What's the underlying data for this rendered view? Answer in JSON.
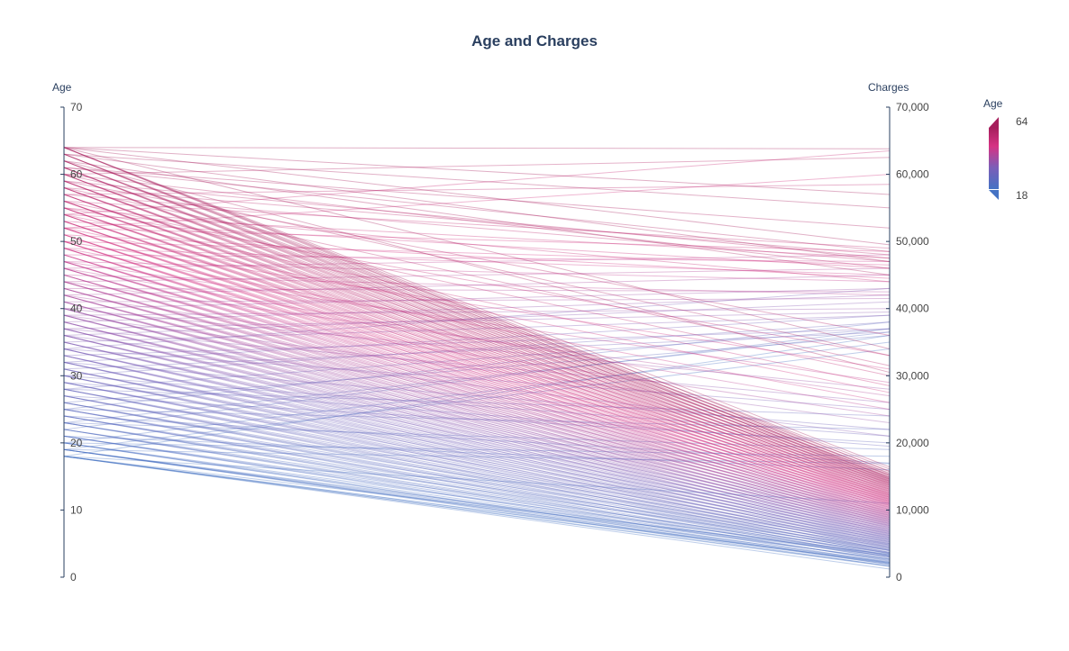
{
  "chart_data": {
    "type": "parallel_coordinates",
    "title": "Age and Charges",
    "dimensions": [
      {
        "label": "Age",
        "range": [
          0,
          70
        ],
        "ticks": [
          0,
          10,
          20,
          30,
          40,
          50,
          60,
          70
        ],
        "tick_labels": [
          "0",
          "10",
          "20",
          "30",
          "40",
          "50",
          "60",
          "70"
        ]
      },
      {
        "label": "Charges",
        "range": [
          0,
          70000
        ],
        "ticks": [
          0,
          10000,
          20000,
          30000,
          40000,
          50000,
          60000,
          70000
        ],
        "tick_labels": [
          "0",
          "10,000",
          "20,000",
          "30,000",
          "40,000",
          "50,000",
          "60,000",
          "70,000"
        ]
      }
    ],
    "colorbar": {
      "title": "Age",
      "min": 18,
      "max": 64,
      "min_label": "18",
      "max_label": "64",
      "colors": [
        "#4472c4",
        "#7b5fb8",
        "#d63384",
        "#a61e5c"
      ]
    },
    "line_opacity": 0.35,
    "records": [
      [
        18,
        1200
      ],
      [
        18,
        1700
      ],
      [
        18,
        2200
      ],
      [
        18,
        1600
      ],
      [
        18,
        11000
      ],
      [
        18,
        3400
      ],
      [
        18,
        36000
      ],
      [
        18,
        2100
      ],
      [
        19,
        1650
      ],
      [
        19,
        2300
      ],
      [
        19,
        1900
      ],
      [
        19,
        2700
      ],
      [
        19,
        16900
      ],
      [
        19,
        34000
      ],
      [
        19,
        3100
      ],
      [
        19,
        2000
      ],
      [
        20,
        2100
      ],
      [
        20,
        2600
      ],
      [
        20,
        1900
      ],
      [
        20,
        3300
      ],
      [
        20,
        35000
      ],
      [
        20,
        18000
      ],
      [
        21,
        2200
      ],
      [
        21,
        3000
      ],
      [
        21,
        2500
      ],
      [
        21,
        3600
      ],
      [
        21,
        16000
      ],
      [
        22,
        2400
      ],
      [
        22,
        3200
      ],
      [
        22,
        2800
      ],
      [
        22,
        37000
      ],
      [
        22,
        4000
      ],
      [
        23,
        2700
      ],
      [
        23,
        3500
      ],
      [
        23,
        3000
      ],
      [
        23,
        19000
      ],
      [
        23,
        4200
      ],
      [
        23,
        36500
      ],
      [
        24,
        3000
      ],
      [
        24,
        3700
      ],
      [
        24,
        3300
      ],
      [
        24,
        4500
      ],
      [
        24,
        17000
      ],
      [
        25,
        3200
      ],
      [
        25,
        4000
      ],
      [
        25,
        3600
      ],
      [
        25,
        22000
      ],
      [
        25,
        4800
      ],
      [
        25,
        38000
      ],
      [
        26,
        3500
      ],
      [
        26,
        4300
      ],
      [
        26,
        3900
      ],
      [
        26,
        5000
      ],
      [
        26,
        36000
      ],
      [
        27,
        3700
      ],
      [
        27,
        4600
      ],
      [
        27,
        4100
      ],
      [
        27,
        20000
      ],
      [
        27,
        5300
      ],
      [
        28,
        4000
      ],
      [
        28,
        4900
      ],
      [
        28,
        4400
      ],
      [
        28,
        5600
      ],
      [
        28,
        37000
      ],
      [
        28,
        24000
      ],
      [
        29,
        4300
      ],
      [
        29,
        5200
      ],
      [
        29,
        4700
      ],
      [
        29,
        19500
      ],
      [
        29,
        5900
      ],
      [
        30,
        4500
      ],
      [
        30,
        5500
      ],
      [
        30,
        5000
      ],
      [
        30,
        38000
      ],
      [
        30,
        6200
      ],
      [
        30,
        21000
      ],
      [
        31,
        4800
      ],
      [
        31,
        5800
      ],
      [
        31,
        5300
      ],
      [
        31,
        6500
      ],
      [
        31,
        36500
      ],
      [
        32,
        5100
      ],
      [
        32,
        6100
      ],
      [
        32,
        5600
      ],
      [
        32,
        22000
      ],
      [
        32,
        6800
      ],
      [
        32,
        39000
      ],
      [
        33,
        5400
      ],
      [
        33,
        6400
      ],
      [
        33,
        5900
      ],
      [
        33,
        7100
      ],
      [
        33,
        37000
      ],
      [
        34,
        5700
      ],
      [
        34,
        6700
      ],
      [
        34,
        6200
      ],
      [
        34,
        25000
      ],
      [
        34,
        7400
      ],
      [
        34,
        43000
      ],
      [
        35,
        6000
      ],
      [
        35,
        7000
      ],
      [
        35,
        6500
      ],
      [
        35,
        7700
      ],
      [
        35,
        39000
      ],
      [
        36,
        6300
      ],
      [
        36,
        7300
      ],
      [
        36,
        6800
      ],
      [
        36,
        21000
      ],
      [
        36,
        8000
      ],
      [
        36,
        41000
      ],
      [
        37,
        6600
      ],
      [
        37,
        7600
      ],
      [
        37,
        7100
      ],
      [
        37,
        8300
      ],
      [
        37,
        39500
      ],
      [
        37,
        26000
      ],
      [
        38,
        6900
      ],
      [
        38,
        7900
      ],
      [
        38,
        7400
      ],
      [
        38,
        8600
      ],
      [
        38,
        42000
      ],
      [
        39,
        7200
      ],
      [
        39,
        8200
      ],
      [
        39,
        7700
      ],
      [
        39,
        23000
      ],
      [
        39,
        8900
      ],
      [
        39,
        40000
      ],
      [
        40,
        7500
      ],
      [
        40,
        8500
      ],
      [
        40,
        8000
      ],
      [
        40,
        9200
      ],
      [
        40,
        43000
      ],
      [
        40,
        28000
      ],
      [
        41,
        7800
      ],
      [
        41,
        8800
      ],
      [
        41,
        8300
      ],
      [
        41,
        9500
      ],
      [
        41,
        41500
      ],
      [
        42,
        8100
      ],
      [
        42,
        9100
      ],
      [
        42,
        8600
      ],
      [
        42,
        24000
      ],
      [
        42,
        9800
      ],
      [
        42,
        45000
      ],
      [
        43,
        8400
      ],
      [
        43,
        9400
      ],
      [
        43,
        8900
      ],
      [
        43,
        10100
      ],
      [
        43,
        42500
      ],
      [
        44,
        8700
      ],
      [
        44,
        9700
      ],
      [
        44,
        9200
      ],
      [
        44,
        27000
      ],
      [
        44,
        10400
      ],
      [
        44,
        46000
      ],
      [
        45,
        9000
      ],
      [
        45,
        10000
      ],
      [
        45,
        9500
      ],
      [
        45,
        10700
      ],
      [
        45,
        42000
      ],
      [
        46,
        9300
      ],
      [
        46,
        10300
      ],
      [
        46,
        9800
      ],
      [
        46,
        25000
      ],
      [
        46,
        11000
      ],
      [
        46,
        48000
      ],
      [
        47,
        9600
      ],
      [
        47,
        10600
      ],
      [
        47,
        10100
      ],
      [
        47,
        11300
      ],
      [
        47,
        44000
      ],
      [
        47,
        29000
      ],
      [
        48,
        9900
      ],
      [
        48,
        10900
      ],
      [
        48,
        10400
      ],
      [
        48,
        11600
      ],
      [
        48,
        47000
      ],
      [
        49,
        10200
      ],
      [
        49,
        11200
      ],
      [
        49,
        10700
      ],
      [
        49,
        26000
      ],
      [
        49,
        11900
      ],
      [
        49,
        45000
      ],
      [
        50,
        10500
      ],
      [
        50,
        11500
      ],
      [
        50,
        11000
      ],
      [
        50,
        12200
      ],
      [
        50,
        46500
      ],
      [
        50,
        31000
      ],
      [
        51,
        10800
      ],
      [
        51,
        11800
      ],
      [
        51,
        11300
      ],
      [
        51,
        12500
      ],
      [
        51,
        44500
      ],
      [
        52,
        11100
      ],
      [
        52,
        12100
      ],
      [
        52,
        11600
      ],
      [
        52,
        27500
      ],
      [
        52,
        12800
      ],
      [
        52,
        48500
      ],
      [
        52,
        60000
      ],
      [
        53,
        11400
      ],
      [
        53,
        12400
      ],
      [
        53,
        11900
      ],
      [
        53,
        13100
      ],
      [
        53,
        46000
      ],
      [
        54,
        11700
      ],
      [
        54,
        12700
      ],
      [
        54,
        12200
      ],
      [
        54,
        28500
      ],
      [
        54,
        13400
      ],
      [
        54,
        47500
      ],
      [
        54,
        63500
      ],
      [
        55,
        12000
      ],
      [
        55,
        13000
      ],
      [
        55,
        12500
      ],
      [
        55,
        13700
      ],
      [
        55,
        44000
      ],
      [
        55,
        33000
      ],
      [
        56,
        12300
      ],
      [
        56,
        13300
      ],
      [
        56,
        12800
      ],
      [
        56,
        30000
      ],
      [
        56,
        14000
      ],
      [
        56,
        49000
      ],
      [
        57,
        12600
      ],
      [
        57,
        13600
      ],
      [
        57,
        13100
      ],
      [
        57,
        14300
      ],
      [
        57,
        47000
      ],
      [
        57,
        58500
      ],
      [
        58,
        12900
      ],
      [
        58,
        13900
      ],
      [
        58,
        13400
      ],
      [
        58,
        31500
      ],
      [
        58,
        14600
      ],
      [
        58,
        48000
      ],
      [
        59,
        13200
      ],
      [
        59,
        14200
      ],
      [
        59,
        13700
      ],
      [
        59,
        14900
      ],
      [
        59,
        47500
      ],
      [
        59,
        36000
      ],
      [
        60,
        13500
      ],
      [
        60,
        14500
      ],
      [
        60,
        14000
      ],
      [
        60,
        33000
      ],
      [
        60,
        15200
      ],
      [
        60,
        46000
      ],
      [
        60,
        62500
      ],
      [
        61,
        13800
      ],
      [
        61,
        14800
      ],
      [
        61,
        14300
      ],
      [
        61,
        15500
      ],
      [
        61,
        48500
      ],
      [
        61,
        52000
      ],
      [
        62,
        14100
      ],
      [
        62,
        15100
      ],
      [
        62,
        14600
      ],
      [
        62,
        30500
      ],
      [
        62,
        15800
      ],
      [
        62,
        45000
      ],
      [
        63,
        14400
      ],
      [
        63,
        15400
      ],
      [
        63,
        14900
      ],
      [
        63,
        16100
      ],
      [
        63,
        47000
      ],
      [
        63,
        55000
      ],
      [
        64,
        14700
      ],
      [
        64,
        15700
      ],
      [
        64,
        15200
      ],
      [
        64,
        34000
      ],
      [
        64,
        16400
      ],
      [
        64,
        49500
      ],
      [
        64,
        63800
      ],
      [
        64,
        57000
      ]
    ]
  }
}
